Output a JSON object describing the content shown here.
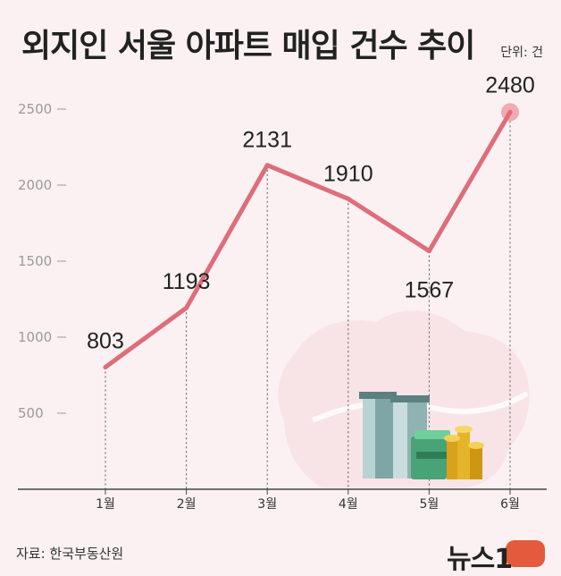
{
  "header": {
    "title": "외지인 서울 아파트 매입 건수 추이",
    "unit": "단위: 건"
  },
  "footer": {
    "source": "자료: 한국부동산원",
    "logo": "뉴스1"
  },
  "colors": {
    "line": "#de6d7a",
    "highlight": "#f2a9b0",
    "axis": "#444444",
    "tick": "#9a9a9a"
  },
  "chart_data": {
    "type": "line",
    "title": "외지인 서울 아파트 매입 건수 추이",
    "xlabel": "",
    "ylabel": "",
    "unit": "건",
    "categories": [
      "1월",
      "2월",
      "3월",
      "4월",
      "5월",
      "6월"
    ],
    "series": [
      {
        "name": "외지인 서울 아파트 매입 건수",
        "values": [
          803,
          1193,
          2131,
          1910,
          1567,
          2480
        ]
      }
    ],
    "yticks": [
      500,
      1000,
      1500,
      2000,
      2500
    ],
    "ylim": [
      0,
      2500
    ],
    "grid": false,
    "highlight_index": 5
  }
}
